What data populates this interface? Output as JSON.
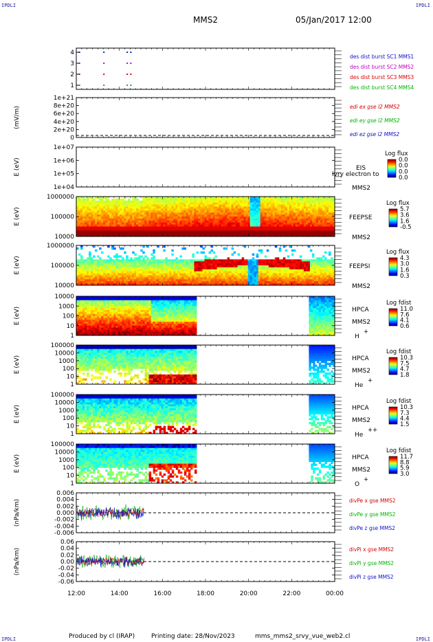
{
  "header": {
    "corner_left": "IPDLI",
    "corner_right": "IPDLI",
    "mission": "MMS2",
    "datetime": "05/Jan/2017 12:00"
  },
  "footer": {
    "credit": "Produced by cl (IRAP)",
    "printing": "Printing date: 28/Nov/2023",
    "filename": "mms_mms2_srvy_vue_web2.cl",
    "corner_left": "IPDLI",
    "corner_right": "IPDLI"
  },
  "colors": {
    "red": "#d40000",
    "green": "#00b400",
    "blue": "#1010c8",
    "magenta": "#c000c0",
    "dark_red": "#8b0000"
  },
  "chart_data": [
    {
      "type": "scatter",
      "id": "burst",
      "ylabel": "",
      "yticks": [
        "4",
        "3",
        "2",
        "1"
      ],
      "xlim": [
        "12:00",
        "00:00"
      ],
      "series": [
        {
          "name": "des dist burst SC1 MMS1",
          "color": "#1010c8",
          "x": [
            "12:07",
            "13:15",
            "14:20",
            "14:30"
          ],
          "y": 4
        },
        {
          "name": "des dist burst SC2 MMS2",
          "color": "#c000c0",
          "x": [
            "12:07",
            "13:15",
            "14:20",
            "14:30"
          ],
          "y": 3
        },
        {
          "name": "des dist burst SC3 MMS3",
          "color": "#d40000",
          "x": [
            "12:07",
            "13:15",
            "14:20",
            "14:30"
          ],
          "y": 2
        },
        {
          "name": "des dist burst SC4 MMS4",
          "color": "#00b400",
          "x": [
            "12:07",
            "13:15",
            "14:20",
            "14:30"
          ],
          "y": 1
        }
      ]
    },
    {
      "type": "line",
      "id": "edi",
      "ylabel": "(mV/m)",
      "yticks": [
        "1e+21",
        "8e+20",
        "6e+20",
        "4e+20",
        "2e+20",
        "0"
      ],
      "ylim": [
        0,
        1e+21
      ],
      "series": [
        {
          "name": "edi ex gse l2 MMS2",
          "color": "#d40000"
        },
        {
          "name": "edi ey gse l2 MMS2",
          "color": "#00b400"
        },
        {
          "name": "edi ez gse l2 MMS2",
          "color": "#1010c8"
        }
      ]
    },
    {
      "type": "heatmap",
      "id": "eis",
      "ylabel": "E (eV)",
      "yticks": [
        "1e+07",
        "1e+06",
        "1e+05",
        "1e+04"
      ],
      "instrument": "EIS",
      "overlay_text": "Ivry electron to",
      "sc": "MMS2",
      "colorbar_title": "Log flux",
      "colorbar_ticks": [
        "0.0",
        "0.0",
        "0.0",
        "0.0"
      ]
    },
    {
      "type": "heatmap",
      "id": "feepse",
      "ylabel": "E (eV)",
      "yticks": [
        "1000000",
        "100000",
        "10000"
      ],
      "instrument": "FEEPSE",
      "sc": "MMS2",
      "colorbar_title": "Log flux",
      "colorbar_ticks": [
        "5.7",
        "3.6",
        "1.6",
        "-0.5"
      ],
      "data_extent": [
        "12:00",
        "00:00"
      ]
    },
    {
      "type": "heatmap",
      "id": "feepsi",
      "ylabel": "E (eV)",
      "yticks": [
        "1000000",
        "100000",
        "10000"
      ],
      "instrument": "FEEPSI",
      "sc": "MMS2",
      "colorbar_title": "Log flux",
      "colorbar_ticks": [
        "4.3",
        "3.0",
        "1.6",
        "0.3"
      ],
      "data_extent": [
        "12:00",
        "00:00"
      ]
    },
    {
      "type": "heatmap",
      "id": "hpca_h",
      "ylabel": "E (eV)",
      "yticks": [
        "10000",
        "1000",
        "100",
        "10",
        "1"
      ],
      "instrument": "HPCA",
      "sc": "MMS2",
      "species": "H",
      "species_sup": "+",
      "colorbar_title": "Log fdist",
      "colorbar_ticks": [
        "11.0",
        "7.6",
        "4.1",
        "0.6"
      ],
      "data_extent": [
        [
          "12:00",
          "17:35"
        ],
        [
          "22:48",
          "00:00"
        ]
      ]
    },
    {
      "type": "heatmap",
      "id": "hpca_he",
      "ylabel": "E (eV)",
      "yticks": [
        "100000",
        "10000",
        "1000",
        "100",
        "10",
        "1"
      ],
      "instrument": "HPCA",
      "sc": "MMS2",
      "species": "He",
      "species_sup": "+",
      "colorbar_title": "Log fdist",
      "colorbar_ticks": [
        "10.3",
        "7.5",
        "4.7",
        "1.8"
      ],
      "data_extent": [
        [
          "12:00",
          "17:35"
        ],
        [
          "22:48",
          "00:00"
        ]
      ]
    },
    {
      "type": "heatmap",
      "id": "hpca_hepp",
      "ylabel": "E (eV)",
      "yticks": [
        "100000",
        "10000",
        "1000",
        "100",
        "10",
        "1"
      ],
      "instrument": "HPCA",
      "sc": "MMS2",
      "species": "He",
      "species_sup": "++",
      "colorbar_title": "Log fdist",
      "colorbar_ticks": [
        "10.3",
        "7.3",
        "4.4",
        "1.5"
      ],
      "data_extent": [
        [
          "12:00",
          "17:35"
        ],
        [
          "22:48",
          "00:00"
        ]
      ]
    },
    {
      "type": "heatmap",
      "id": "hpca_o",
      "ylabel": "E (eV)",
      "yticks": [
        "100000",
        "10000",
        "1000",
        "100",
        "10",
        "1"
      ],
      "instrument": "HPCA",
      "sc": "MMS2",
      "species": "O",
      "species_sup": "+",
      "colorbar_title": "Log fdist",
      "colorbar_ticks": [
        "11.7",
        "8.8",
        "5.9",
        "3.0"
      ],
      "data_extent": [
        [
          "12:00",
          "17:35"
        ],
        [
          "22:48",
          "00:00"
        ]
      ]
    },
    {
      "type": "line",
      "id": "divpe",
      "ylabel": "(nPa/km)",
      "yticks": [
        "0.006",
        "0.004",
        "0.002",
        "0.000",
        "-0.002",
        "-0.004",
        "-0.006"
      ],
      "ylim": [
        -0.007,
        0.007
      ],
      "data_extent": [
        "12:00",
        "15:10"
      ],
      "series": [
        {
          "name": "divPe x gse MMS2",
          "color": "#d40000"
        },
        {
          "name": "divPe y gse MMS2",
          "color": "#00b400"
        },
        {
          "name": "divPe z gse MMS2",
          "color": "#1010c8"
        }
      ]
    },
    {
      "type": "line",
      "id": "divpi",
      "ylabel": "(nPa/km)",
      "yticks": [
        "0.06",
        "0.04",
        "0.02",
        "0.00",
        "-0.02",
        "-0.04",
        "-0.06"
      ],
      "ylim": [
        -0.07,
        0.07
      ],
      "data_extent": [
        "12:00",
        "15:10"
      ],
      "series": [
        {
          "name": "divPi x gse MMS2",
          "color": "#d40000"
        },
        {
          "name": "divPi y gse MMS2",
          "color": "#00b400"
        },
        {
          "name": "divPi z gse MMS2",
          "color": "#1010c8"
        }
      ]
    }
  ],
  "xaxis": {
    "ticks": [
      "12:00",
      "14:00",
      "16:00",
      "18:00",
      "20:00",
      "22:00",
      "00:00"
    ]
  }
}
